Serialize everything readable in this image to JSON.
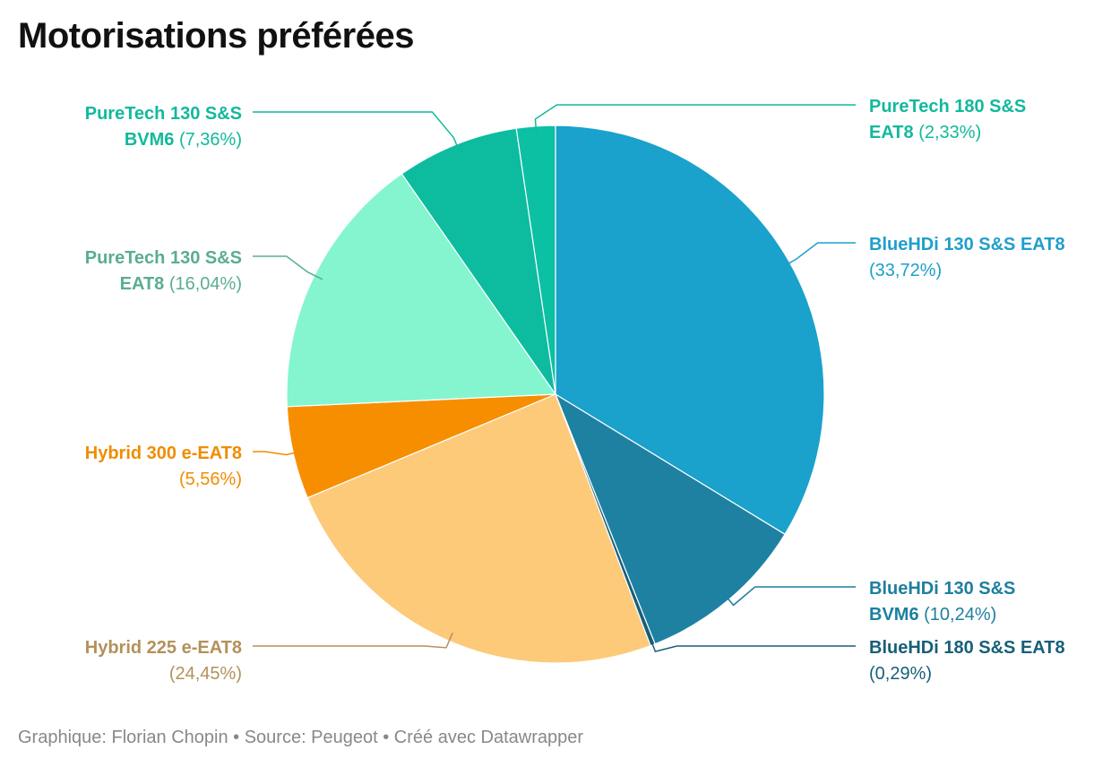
{
  "title": "Motorisations préférées",
  "footer": {
    "text": "Graphique: Florian Chopin • Source: Peugeot • Créé avec Datawrapper"
  },
  "chart_data": {
    "type": "pie",
    "start_angle_deg": 0,
    "direction": "clockwise",
    "slices": [
      {
        "label_lines": [
          "BlueHDi 130 S&S EAT8"
        ],
        "value": 33.72,
        "value_text": "(33,72%)",
        "value_inline": false,
        "color": "#1aa1cc",
        "label_color": "#1e9fcb"
      },
      {
        "label_lines": [
          "BlueHDi 130 S&S",
          "BVM6"
        ],
        "value": 10.24,
        "value_text": "(10,24%)",
        "value_inline": true,
        "color": "#1e81a2",
        "label_color": "#1e7fa0"
      },
      {
        "label_lines": [
          "BlueHDi 180 S&S EAT8"
        ],
        "value": 0.29,
        "value_text": "(0,29%)",
        "value_inline": false,
        "color": "#175f79",
        "label_color": "#175f79"
      },
      {
        "label_lines": [
          "Hybrid 225 e-EAT8"
        ],
        "value": 24.45,
        "value_text": "(24,45%)",
        "value_inline": false,
        "color": "#fdca7a",
        "label_color": "#b3915a"
      },
      {
        "label_lines": [
          "Hybrid 300 e-EAT8"
        ],
        "value": 5.56,
        "value_text": "(5,56%)",
        "value_inline": false,
        "color": "#f78e00",
        "label_color": "#f18c00"
      },
      {
        "label_lines": [
          "PureTech 130 S&S",
          "EAT8"
        ],
        "value": 16.04,
        "value_text": "(16,04%)",
        "value_inline": true,
        "color": "#85f5cf",
        "label_color": "#5aad91"
      },
      {
        "label_lines": [
          "PureTech 130 S&S",
          "BVM6"
        ],
        "value": 7.36,
        "value_text": "(7,36%)",
        "value_inline": true,
        "color": "#0dbc9f",
        "label_color": "#12b99c"
      },
      {
        "label_lines": [
          "PureTech 180 S&S",
          "EAT8"
        ],
        "value": 2.33,
        "value_text": "(2,33%)",
        "value_inline": true,
        "color": "#0cc0a3",
        "label_color": "#12b99c"
      }
    ]
  }
}
